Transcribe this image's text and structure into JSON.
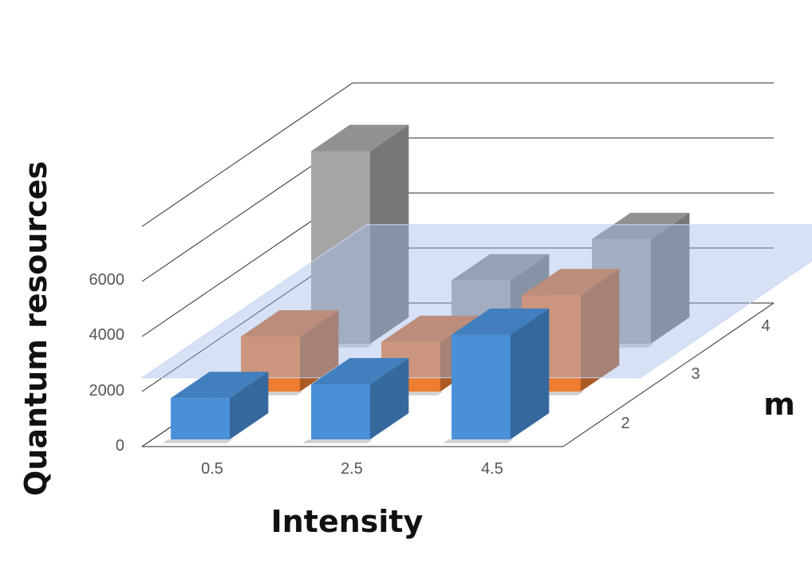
{
  "chart_data": {
    "type": "bar",
    "variant": "3d",
    "categories": [
      "0.5",
      "2.5",
      "4.5"
    ],
    "series": [
      {
        "name": "2",
        "values": [
          1500,
          2000,
          3800
        ],
        "color": "#4a90d9"
      },
      {
        "name": "3",
        "values": [
          2000,
          1800,
          3500
        ],
        "color": "#ed7d31"
      },
      {
        "name": "4",
        "values": [
          7000,
          2300,
          3800
        ],
        "color": "#a5a5a5"
      }
    ],
    "xlabel": "Intensity",
    "ylabel": "Quantum resources",
    "zlabel": "m",
    "yticks": [
      "0",
      "2000",
      "4000",
      "6000"
    ],
    "ylim": [
      0,
      6000
    ],
    "threshold_plane": {
      "value": 2500,
      "color": "#9fb8e6"
    },
    "grid": true
  }
}
